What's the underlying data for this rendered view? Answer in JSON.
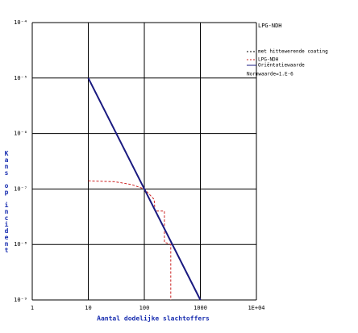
{
  "chart_data": {
    "type": "line",
    "title": "LPG-NDH",
    "x_label": "Aantal dodelijke slachtoffers",
    "y_label": "Kans op incident",
    "log_x": true,
    "log_y": true,
    "grid": true,
    "xlim": [
      1,
      10000
    ],
    "xticks": [
      1,
      10,
      100,
      1000,
      {
        "value": 10000,
        "label": "1E+04"
      }
    ],
    "ylim": [
      1e-09,
      0.0001
    ],
    "yticks": [
      {
        "value": 1e-09,
        "label": "10⁻⁹"
      },
      {
        "value": 1e-08,
        "label": "10⁻⁸"
      },
      {
        "value": 1e-07,
        "label": "10⁻⁷"
      },
      {
        "value": 1e-06,
        "label": "10⁻⁶"
      },
      {
        "value": 1e-05,
        "label": "10⁻⁵"
      },
      {
        "value": 0.0001,
        "label": "10⁻⁴"
      }
    ],
    "legend_note": "met hittewerende coating",
    "norm_note": "Normwaarde=1.E-6",
    "series": [
      {
        "name": "LPG-NDH",
        "color": "#cc2222",
        "dashed": true,
        "x": [
          10,
          30,
          60,
          100,
          150,
          155,
          228,
          228,
          296,
          296
        ],
        "y": [
          1.4e-07,
          1.35e-07,
          1.2e-07,
          1e-07,
          6.5e-08,
          4e-08,
          4e-08,
          1.1e-08,
          1e-08,
          1e-09
        ]
      },
      {
        "name": "Oriëntatiewaarde",
        "color": "#1a1a80",
        "dashed": false,
        "x": [
          10,
          1000
        ],
        "y": [
          1e-05,
          1e-09
        ]
      }
    ]
  }
}
